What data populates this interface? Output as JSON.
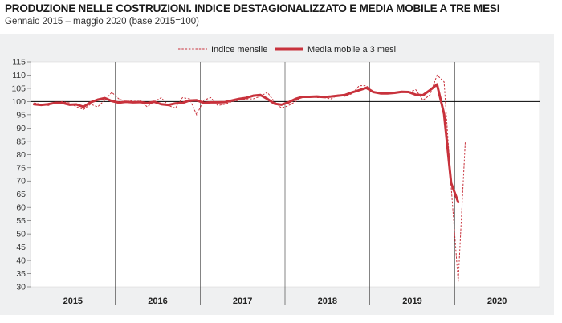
{
  "chart_data": {
    "type": "line",
    "title": "PRODUZIONE NELLE COSTRUZIONI. INDICE DESTAGIONALIZZATO E MEDIA MOBILE A TRE MESI",
    "subtitle": "Gennaio 2015 – maggio 2020 (base 2015=100)",
    "ylim": [
      30,
      115
    ],
    "yticks": [
      30,
      35,
      40,
      45,
      50,
      55,
      60,
      65,
      70,
      75,
      80,
      85,
      90,
      95,
      100,
      105,
      110,
      115
    ],
    "year_labels": [
      "2015",
      "2016",
      "2017",
      "2018",
      "2019",
      "2020"
    ],
    "reference_line": 100,
    "grid": false,
    "legend_position": "top",
    "colors": {
      "series": "#c8323c",
      "background": "#eff0f1",
      "reference": "#000000"
    },
    "series": [
      {
        "name": "Indice mensile",
        "style": "dashed",
        "values": [
          99.5,
          99.0,
          98.5,
          99.5,
          100.0,
          99.5,
          98.0,
          97.0,
          99.0,
          98.0,
          100.5,
          103.5,
          101.0,
          100.0,
          100.5,
          100.5,
          98.0,
          100.0,
          101.5,
          98.5,
          97.5,
          101.5,
          101.0,
          95.0,
          100.5,
          101.5,
          98.5,
          99.0,
          100.0,
          100.5,
          101.0,
          101.0,
          102.0,
          103.5,
          100.0,
          97.5,
          98.5,
          100.0,
          102.0,
          102.0,
          101.5,
          101.5,
          101.0,
          102.5,
          102.0,
          103.0,
          106.0,
          106.0,
          103.5,
          103.0,
          103.0,
          103.5,
          103.5,
          103.5,
          104.5,
          100.5,
          102.5,
          110.0,
          107.5,
          68.0,
          32.0,
          85.0
        ]
      },
      {
        "name": "Media mobile a 3 mesi",
        "style": "solid",
        "values": [
          99.0,
          98.7,
          99.0,
          99.5,
          99.5,
          98.8,
          98.9,
          98.0,
          99.7,
          100.7,
          101.3,
          100.2,
          99.6,
          99.9,
          99.7,
          99.8,
          99.4,
          99.9,
          99.0,
          98.7,
          99.3,
          99.5,
          100.4,
          100.5,
          99.5,
          99.7,
          99.7,
          99.8,
          100.4,
          101.0,
          101.4,
          102.2,
          102.5,
          101.0,
          99.2,
          98.8,
          99.7,
          101.0,
          101.8,
          101.8,
          101.9,
          101.7,
          101.9,
          102.2,
          102.5,
          103.5,
          104.3,
          105.2,
          103.6,
          103.1,
          103.1,
          103.3,
          103.7,
          103.6,
          102.6,
          102.4,
          104.3,
          106.5,
          95.3,
          69.2,
          62.0
        ]
      }
    ]
  }
}
